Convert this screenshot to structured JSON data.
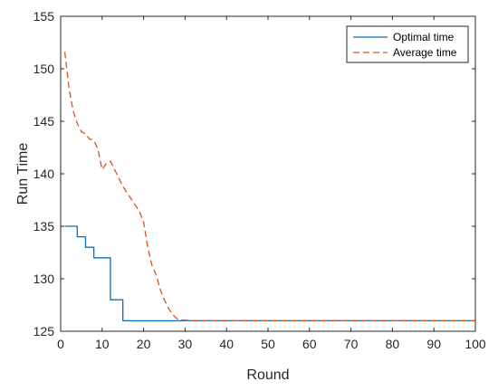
{
  "chart_data": {
    "type": "line",
    "title": "",
    "xlabel": "Round",
    "ylabel": "Run Time",
    "xlim": [
      0,
      100
    ],
    "ylim": [
      125,
      155
    ],
    "xticks": [
      0,
      10,
      20,
      30,
      40,
      50,
      60,
      70,
      80,
      90,
      100
    ],
    "yticks": [
      125,
      130,
      135,
      140,
      145,
      150,
      155
    ],
    "grid": false,
    "legend_position": "top-right",
    "series": [
      {
        "name": "Optimal time",
        "color": "#0072BD",
        "style": "solid",
        "step": true,
        "x": [
          1,
          2,
          3,
          4,
          5,
          6,
          7,
          8,
          9,
          10,
          11,
          12,
          13,
          14,
          15,
          16,
          17,
          18,
          19,
          20,
          21,
          22,
          23,
          24,
          25,
          26,
          27,
          28,
          29,
          30,
          31,
          100
        ],
        "y": [
          135,
          135,
          135,
          134,
          134,
          133,
          133,
          132,
          132,
          132,
          132,
          128,
          128,
          128,
          126,
          126,
          126,
          126,
          126,
          126,
          126,
          126,
          126,
          126,
          126,
          126,
          126,
          126,
          126,
          126,
          126,
          126
        ]
      },
      {
        "name": "Average time",
        "color": "#D95319",
        "style": "dashed",
        "step": false,
        "x": [
          1,
          2,
          3,
          4,
          5,
          6,
          7,
          8,
          9,
          10,
          11,
          12,
          13,
          14,
          15,
          16,
          17,
          18,
          19,
          20,
          21,
          22,
          23,
          24,
          25,
          26,
          27,
          28,
          29,
          30,
          31,
          32,
          35,
          40,
          50,
          60,
          70,
          80,
          90,
          100
        ],
        "y": [
          151.6,
          148.2,
          146.0,
          144.8,
          144.0,
          143.8,
          143.3,
          143.2,
          142.3,
          140.4,
          141.0,
          141.2,
          140.4,
          139.6,
          138.8,
          138.2,
          137.6,
          137.0,
          136.4,
          135.4,
          133.0,
          131.3,
          130.4,
          129.0,
          128.0,
          127.2,
          126.6,
          126.2,
          126.1,
          126.05,
          126.02,
          126.0,
          126.0,
          126.0,
          126.0,
          126.0,
          126.0,
          126.0,
          126.0,
          126.0
        ]
      }
    ]
  }
}
